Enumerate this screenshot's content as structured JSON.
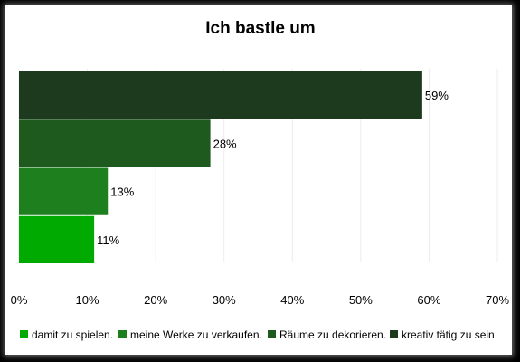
{
  "chart_data": {
    "type": "bar",
    "orientation": "horizontal",
    "title": "Ich bastle um",
    "xlabel": "",
    "ylabel": "",
    "xlim": [
      0,
      70
    ],
    "x_ticks": [
      "0%",
      "10%",
      "20%",
      "30%",
      "40%",
      "50%",
      "60%",
      "70%"
    ],
    "grid": "vertical",
    "legend_position": "bottom",
    "series": [
      {
        "name": "damit zu spielen.",
        "value": 11,
        "label": "11%",
        "color": "#00aa00"
      },
      {
        "name": "meine Werke zu verkaufen.",
        "value": 13,
        "label": "13%",
        "color": "#1e7f1e"
      },
      {
        "name": "Räume zu dekorieren.",
        "value": 28,
        "label": "28%",
        "color": "#1e5a1e"
      },
      {
        "name": "kreativ tätig zu sein.",
        "value": 59,
        "label": "59%",
        "color": "#1e3a1e"
      }
    ]
  }
}
